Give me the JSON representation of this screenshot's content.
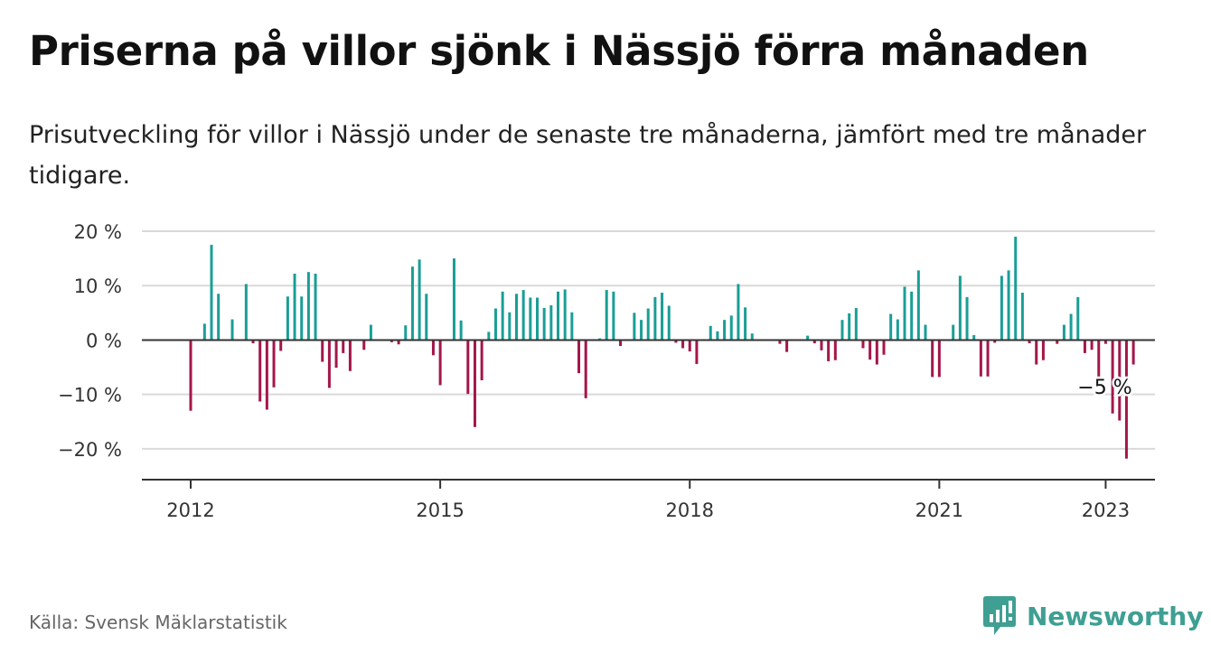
{
  "title": "Priserna på villor sjönk i Nässjö förra månaden",
  "subtitle": "Prisutveckling för villor i Nässjö under de senaste tre månaderna, jämfört med tre månader tidigare.",
  "source": "Källa: Svensk Mäklarstatistik",
  "brand": {
    "name": "Newsworthy",
    "icon": "newsworthy-logo-icon"
  },
  "colors": {
    "positive": "#1a9e96",
    "negative": "#a3174a",
    "grid": "#d9d9d9",
    "axis": "#333333"
  },
  "chart_data": {
    "type": "bar",
    "title": "Priserna på villor sjönk i Nässjö förra månaden",
    "xlabel": "",
    "ylabel": "",
    "y_ticks": [
      20,
      10,
      0,
      -10,
      -20
    ],
    "y_tick_labels": [
      "20 %",
      "10 %",
      "0 %",
      "−10 %",
      "−20 %"
    ],
    "ylim": [
      -25.5,
      20
    ],
    "x_tick_labels": [
      "2012",
      "2015",
      "2018",
      "2021",
      "2023"
    ],
    "x_tick_months": [
      "2012-01",
      "2015-01",
      "2018-01",
      "2021-01",
      "2023-01"
    ],
    "start_month": "2012-01",
    "grid": true,
    "annotation": {
      "label": "−5 %",
      "month": "2023-01"
    },
    "values": [
      -13,
      null,
      3,
      17.5,
      8.5,
      null,
      3.8,
      null,
      10.3,
      -0.6,
      -11.3,
      -12.8,
      -8.7,
      -2,
      8,
      12.2,
      8,
      12.5,
      12.2,
      -4,
      -8.8,
      -5.1,
      -2.4,
      -5.7,
      null,
      -1.8,
      2.8,
      null,
      null,
      -0.4,
      -0.8,
      2.7,
      13.5,
      14.8,
      8.5,
      -2.8,
      -8.3,
      null,
      15,
      3.6,
      -9.9,
      -16,
      -7.4,
      1.5,
      5.8,
      8.9,
      5.1,
      8.5,
      9.2,
      7.8,
      7.8,
      5.9,
      6.4,
      8.9,
      9.3,
      5.1,
      -6.1,
      -10.7,
      null,
      0.3,
      9.2,
      8.9,
      -1.1,
      null,
      5,
      3.7,
      5.8,
      7.9,
      8.7,
      6.3,
      -0.5,
      -1.5,
      -2.1,
      -4.4,
      null,
      2.6,
      1.6,
      3.7,
      4.5,
      10.3,
      6,
      1.2,
      null,
      null,
      null,
      -0.7,
      -2.2,
      null,
      null,
      0.8,
      -0.6,
      -1.9,
      -3.9,
      -3.7,
      3.7,
      4.9,
      5.9,
      -1.5,
      -3.6,
      -4.5,
      -2.7,
      4.8,
      3.8,
      9.8,
      8.9,
      12.8,
      2.8,
      -6.8,
      -6.8,
      null,
      2.8,
      11.8,
      7.9,
      0.9,
      -6.7,
      -6.7,
      -0.5,
      11.8,
      12.8,
      19,
      8.7,
      -0.6,
      -4.5,
      -3.7,
      null,
      -0.7,
      2.8,
      4.8,
      7.9,
      -2.4,
      -1.8,
      -6.7,
      -0.7,
      -13.5,
      -14.8,
      -21.8,
      -4.5
    ]
  }
}
